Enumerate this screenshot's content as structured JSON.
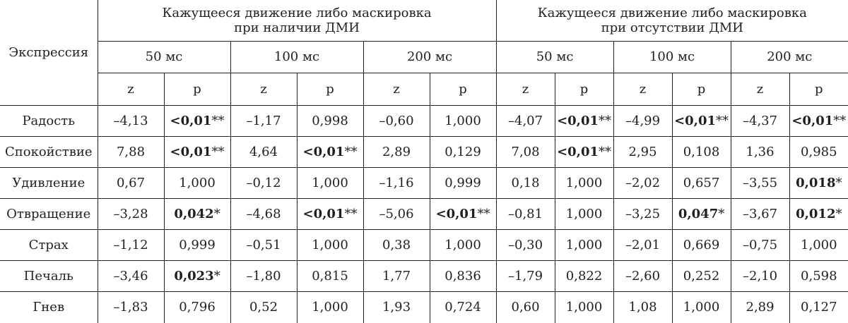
{
  "table": {
    "row_header": "Экспрессия",
    "groups": [
      {
        "line1": "Кажущееся движение либо маскировка",
        "line2": "при наличии ДМИ"
      },
      {
        "line1": "Кажущееся движение либо маскировка",
        "line2": "при отсутствии ДМИ"
      }
    ],
    "durations": [
      "50 мс",
      "100 мс",
      "200 мс",
      "50 мс",
      "100 мс",
      "200 мс"
    ],
    "stat_labels": {
      "z": "z",
      "p": "p"
    },
    "rows": [
      {
        "name": "Радость",
        "cells": [
          {
            "z": "–4,13",
            "p": "<0,01",
            "stars": "**",
            "bold": true
          },
          {
            "z": "–1,17",
            "p": "0,998",
            "stars": "",
            "bold": false
          },
          {
            "z": "–0,60",
            "p": "1,000",
            "stars": "",
            "bold": false
          },
          {
            "z": "–4,07",
            "p": "<0,01",
            "stars": "**",
            "bold": true
          },
          {
            "z": "–4,99",
            "p": "<0,01",
            "stars": "**",
            "bold": true
          },
          {
            "z": "–4,37",
            "p": "<0,01",
            "stars": "**",
            "bold": true
          }
        ]
      },
      {
        "name": "Спокойствие",
        "cells": [
          {
            "z": "7,88",
            "p": "<0,01",
            "stars": "**",
            "bold": true
          },
          {
            "z": "4,64",
            "p": "<0,01",
            "stars": "**",
            "bold": true
          },
          {
            "z": "2,89",
            "p": "0,129",
            "stars": "",
            "bold": false
          },
          {
            "z": "7,08",
            "p": "<0,01",
            "stars": "**",
            "bold": true
          },
          {
            "z": "2,95",
            "p": "0,108",
            "stars": "",
            "bold": false
          },
          {
            "z": "1,36",
            "p": "0,985",
            "stars": "",
            "bold": false
          }
        ]
      },
      {
        "name": "Удивление",
        "cells": [
          {
            "z": "0,67",
            "p": "1,000",
            "stars": "",
            "bold": false
          },
          {
            "z": "–0,12",
            "p": "1,000",
            "stars": "",
            "bold": false
          },
          {
            "z": "–1,16",
            "p": "0,999",
            "stars": "",
            "bold": false
          },
          {
            "z": "0,18",
            "p": "1,000",
            "stars": "",
            "bold": false
          },
          {
            "z": "–2,02",
            "p": "0,657",
            "stars": "",
            "bold": false
          },
          {
            "z": "–3,55",
            "p": "0,018",
            "stars": "*",
            "bold": true
          }
        ]
      },
      {
        "name": "Отвращение",
        "cells": [
          {
            "z": "–3,28",
            "p": "0,042",
            "stars": "*",
            "bold": true
          },
          {
            "z": "–4,68",
            "p": "<0,01",
            "stars": "**",
            "bold": true
          },
          {
            "z": "–5,06",
            "p": "<0,01",
            "stars": "**",
            "bold": true
          },
          {
            "z": "–0,81",
            "p": "1,000",
            "stars": "",
            "bold": false
          },
          {
            "z": "–3,25",
            "p": "0,047",
            "stars": "*",
            "bold": true
          },
          {
            "z": "–3,67",
            "p": "0,012",
            "stars": "*",
            "bold": true
          }
        ]
      },
      {
        "name": "Страх",
        "cells": [
          {
            "z": "–1,12",
            "p": "0,999",
            "stars": "",
            "bold": false
          },
          {
            "z": "–0,51",
            "p": "1,000",
            "stars": "",
            "bold": false
          },
          {
            "z": "0,38",
            "p": "1,000",
            "stars": "",
            "bold": false
          },
          {
            "z": "–0,30",
            "p": "1,000",
            "stars": "",
            "bold": false
          },
          {
            "z": "–2,01",
            "p": "0,669",
            "stars": "",
            "bold": false
          },
          {
            "z": "–0,75",
            "p": "1,000",
            "stars": "",
            "bold": false
          }
        ]
      },
      {
        "name": "Печаль",
        "cells": [
          {
            "z": "–3,46",
            "p": "0,023",
            "stars": "*",
            "bold": true
          },
          {
            "z": "–1,80",
            "p": "0,815",
            "stars": "",
            "bold": false
          },
          {
            "z": "1,77",
            "p": "0,836",
            "stars": "",
            "bold": false
          },
          {
            "z": "–1,79",
            "p": "0,822",
            "stars": "",
            "bold": false
          },
          {
            "z": "–2,60",
            "p": "0,252",
            "stars": "",
            "bold": false
          },
          {
            "z": "–2,10",
            "p": "0,598",
            "stars": "",
            "bold": false
          }
        ]
      },
      {
        "name": "Гнев",
        "cells": [
          {
            "z": "–1,83",
            "p": "0,796",
            "stars": "",
            "bold": false
          },
          {
            "z": "0,52",
            "p": "1,000",
            "stars": "",
            "bold": false
          },
          {
            "z": "1,93",
            "p": "0,724",
            "stars": "",
            "bold": false
          },
          {
            "z": "0,60",
            "p": "1,000",
            "stars": "",
            "bold": false
          },
          {
            "z": "1,08",
            "p": "1,000",
            "stars": "",
            "bold": false
          },
          {
            "z": "2,89",
            "p": "0,127",
            "stars": "",
            "bold": false
          }
        ]
      }
    ]
  }
}
